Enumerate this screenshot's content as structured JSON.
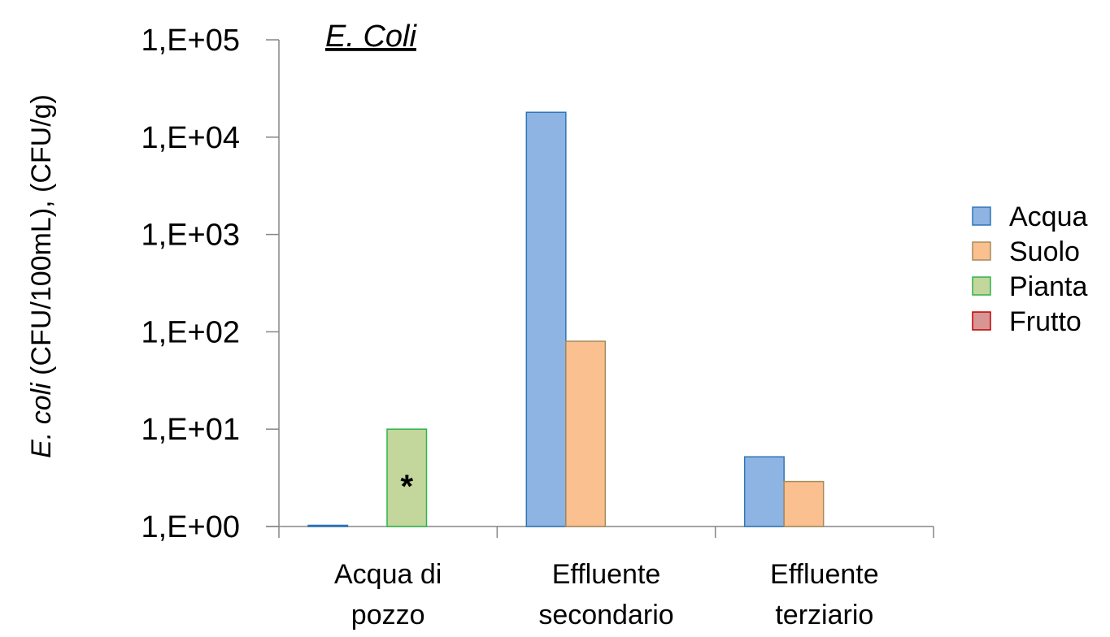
{
  "chart_data": {
    "type": "bar",
    "title": "E. Coli",
    "ylabel": {
      "italic_part": "E. coli",
      "rest": " (CFU/100mL), (CFU/g)"
    },
    "yscale": "log",
    "ylim": [
      1,
      100000
    ],
    "yticks": [
      {
        "value": 1,
        "label": "1,E+00"
      },
      {
        "value": 10,
        "label": "1,E+01"
      },
      {
        "value": 100,
        "label": "1,E+02"
      },
      {
        "value": 1000,
        "label": "1,E+03"
      },
      {
        "value": 10000,
        "label": "1,E+04"
      },
      {
        "value": 100000,
        "label": "1,E+05"
      }
    ],
    "categories": [
      [
        "Acqua di",
        "pozzo"
      ],
      [
        "Effluente",
        "secondario"
      ],
      [
        "Effluente",
        "terziario"
      ]
    ],
    "series": [
      {
        "name": "Acqua",
        "color": "#8eb4e3",
        "stroke": "#2e75b6",
        "values": [
          1,
          18000,
          5.2
        ]
      },
      {
        "name": "Suolo",
        "color": "#fac08f",
        "stroke": "#a68a5b",
        "values": [
          null,
          80,
          2.9
        ]
      },
      {
        "name": "Pianta",
        "color": "#c3d69b",
        "stroke": "#2db34a",
        "values": [
          10,
          null,
          null
        ]
      },
      {
        "name": "Frutto",
        "color": "#d99594",
        "stroke": "#c00000",
        "values": [
          null,
          null,
          null
        ]
      }
    ],
    "annotations": [
      {
        "category_index": 0,
        "series_index": 2,
        "text": "*"
      }
    ],
    "legend_position": "right",
    "grid": false
  }
}
